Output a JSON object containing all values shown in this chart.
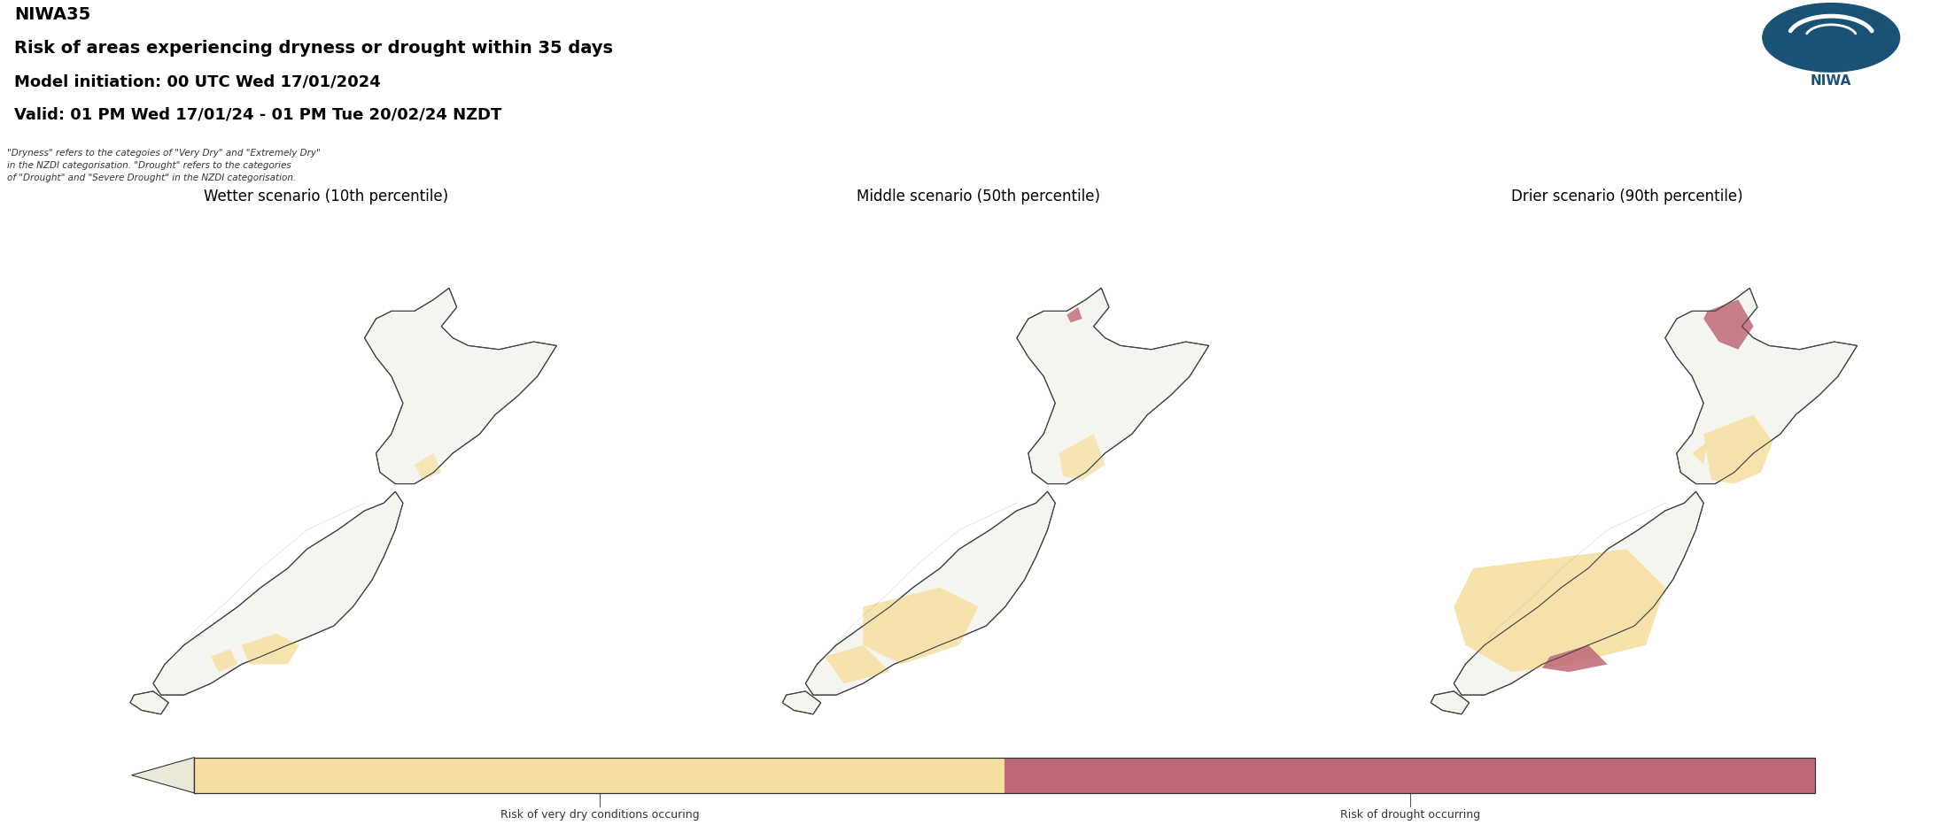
{
  "title_line1": "NIWA35",
  "title_line2": "Risk of areas experiencing dryness or drought within 35 days",
  "title_line3": "Model initiation: 00 UTC Wed 17/01/2024",
  "title_line4": "Valid: 01 PM Wed 17/01/24 - 01 PM Tue 20/02/24 NZDT",
  "subtitle_note": "\"Dryness\" refers to the categoies of \"Very Dry\" and \"Extremely Dry\"\nin the NZDI categorisation. \"Drought\" refers to the categories\nof \"Drought\" and \"Severe Drought\" in the NZDI categorisation.",
  "panel_titles": [
    "Wetter scenario (10th percentile)",
    "Middle scenario (50th percentile)",
    "Drier scenario (90th percentile)"
  ],
  "legend_label1": "Risk of very dry conditions occuring",
  "legend_label2": "Risk of drought occurring",
  "panel_bg": "#ccdde8",
  "color_very_dry": "#f5dfa0",
  "color_drought": "#c06878",
  "color_land": "#f5f5f0",
  "color_border": "#444444",
  "color_ocean": "#ccdde8"
}
